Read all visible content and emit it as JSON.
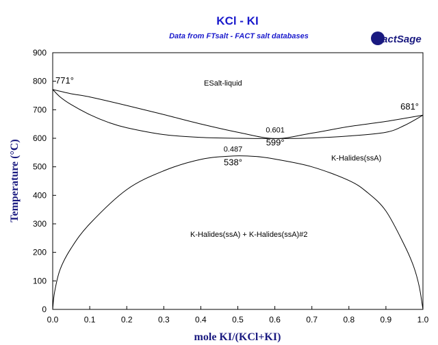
{
  "chart_data": {
    "type": "line",
    "title": "KCl - KI",
    "subtitle": "Data from FTsalt - FACT salt databases",
    "xlabel": "mole KI/(KCl+KI)",
    "ylabel": "Temperature (°C)",
    "xlim": [
      0,
      1
    ],
    "ylim": [
      0,
      900
    ],
    "x_ticks": [
      "0.0",
      "0.1",
      "0.2",
      "0.3",
      "0.4",
      "0.5",
      "0.6",
      "0.7",
      "0.8",
      "0.9",
      "1.0"
    ],
    "y_ticks": [
      "0",
      "100",
      "200",
      "300",
      "400",
      "500",
      "600",
      "700",
      "800",
      "900"
    ],
    "grid": false,
    "logo": "FactSage",
    "series": [
      {
        "id": "liquidus",
        "points": [
          [
            0,
            771
          ],
          [
            0.05,
            756
          ],
          [
            0.1,
            745
          ],
          [
            0.2,
            715
          ],
          [
            0.3,
            683
          ],
          [
            0.4,
            650
          ],
          [
            0.5,
            621
          ],
          [
            0.601,
            599
          ],
          [
            0.7,
            618
          ],
          [
            0.8,
            641
          ],
          [
            0.9,
            659
          ],
          [
            1.0,
            681
          ]
        ]
      },
      {
        "id": "solidus",
        "points": [
          [
            0,
            771
          ],
          [
            0.02,
            745
          ],
          [
            0.05,
            718
          ],
          [
            0.1,
            683
          ],
          [
            0.15,
            656
          ],
          [
            0.2,
            637
          ],
          [
            0.3,
            613
          ],
          [
            0.4,
            603
          ],
          [
            0.5,
            600
          ],
          [
            0.601,
            599
          ],
          [
            0.7,
            601
          ],
          [
            0.8,
            608
          ],
          [
            0.9,
            621
          ],
          [
            0.95,
            645
          ],
          [
            1.0,
            681
          ]
        ]
      },
      {
        "id": "miscibility-gap",
        "points": [
          [
            0,
            0
          ],
          [
            0.005,
            60
          ],
          [
            0.02,
            140
          ],
          [
            0.05,
            215
          ],
          [
            0.1,
            300
          ],
          [
            0.2,
            420
          ],
          [
            0.3,
            486
          ],
          [
            0.4,
            526
          ],
          [
            0.487,
            538
          ],
          [
            0.55,
            536
          ],
          [
            0.6,
            527
          ],
          [
            0.7,
            500
          ],
          [
            0.8,
            452
          ],
          [
            0.85,
            410
          ],
          [
            0.9,
            345
          ],
          [
            0.95,
            225
          ],
          [
            0.975,
            150
          ],
          [
            0.99,
            80
          ],
          [
            1.0,
            0
          ]
        ]
      }
    ],
    "regions": [
      {
        "label": "ESalt-liquid",
        "x": 0.46,
        "y": 785
      },
      {
        "label": "K-Halides(ssA)",
        "x": 0.82,
        "y": 522
      },
      {
        "label": "K-Halides(ssA) + K-Halides(ssA)#2",
        "x": 0.53,
        "y": 255
      }
    ],
    "annotations": [
      {
        "text": "0.601",
        "x": 0.601,
        "y": 621,
        "style": "small"
      },
      {
        "text": "599°",
        "x": 0.601,
        "y": 575,
        "style": "big"
      },
      {
        "text": "0.487",
        "x": 0.487,
        "y": 553,
        "style": "small"
      },
      {
        "text": "538°",
        "x": 0.487,
        "y": 505,
        "style": "big"
      },
      {
        "text": "771°",
        "x": 0.0,
        "y": 792,
        "style": "big",
        "anchor": "start",
        "dx": 4
      },
      {
        "text": "681°",
        "x": 1.0,
        "y": 701,
        "style": "big",
        "anchor": "end",
        "dx": -6
      }
    ]
  }
}
